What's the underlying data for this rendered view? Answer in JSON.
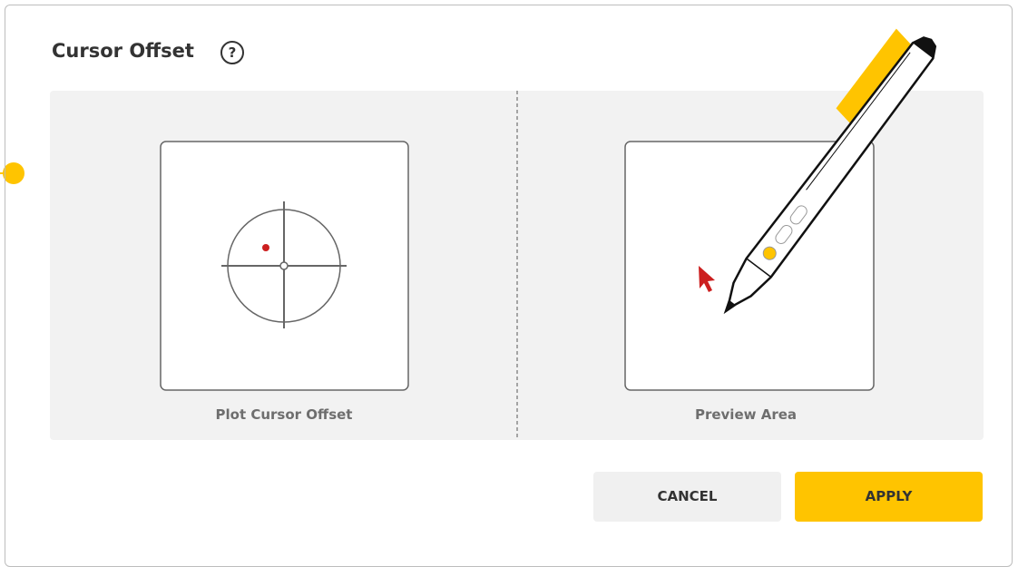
{
  "dialog": {
    "title": "Cursor Offset",
    "help": "?",
    "plot_label": "Plot Cursor Offset",
    "preview_label": "Preview Area",
    "cancel": "CANCEL",
    "apply": "APPLY"
  }
}
